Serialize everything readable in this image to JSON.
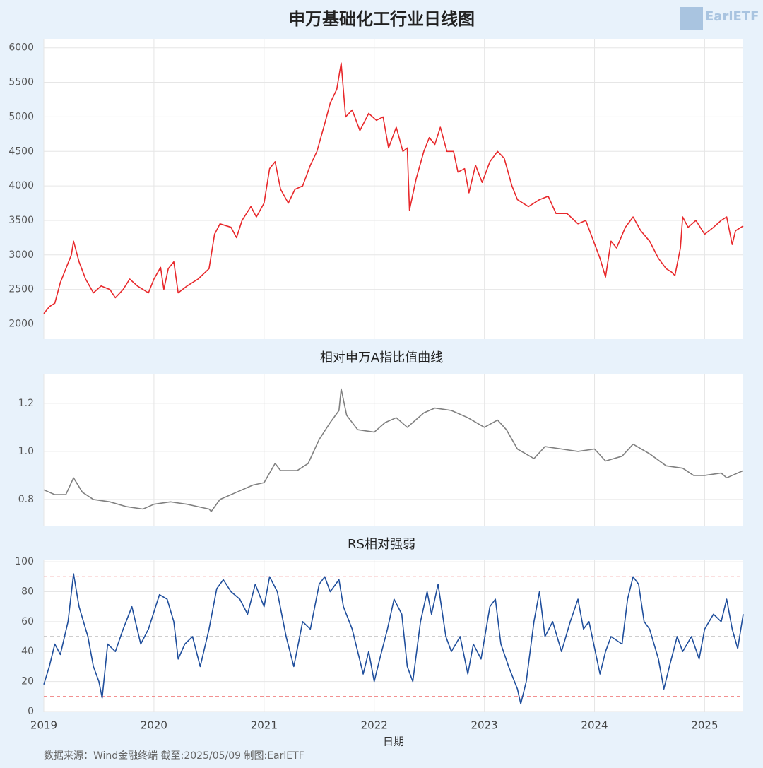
{
  "logo": "EarlETF",
  "source": "数据来源：Wind金融终端 截至:2025/05/09 制图:EarlETF",
  "chart_data": [
    {
      "type": "line",
      "title": "申万基础化工行业日线图",
      "color": "#e8282b",
      "grid": true,
      "show_xtick_labels": false,
      "xlim": [
        2019,
        2025.35
      ],
      "xticks": [
        2019,
        2020,
        2021,
        2022,
        2023,
        2024,
        2025
      ],
      "ylim": [
        1780,
        6130
      ],
      "yticks": [
        2000,
        2500,
        3000,
        3500,
        4000,
        4500,
        5000,
        5500,
        6000
      ],
      "x": [
        2019.0,
        2019.05,
        2019.1,
        2019.15,
        2019.2,
        2019.25,
        2019.27,
        2019.32,
        2019.38,
        2019.45,
        2019.52,
        2019.6,
        2019.65,
        2019.72,
        2019.78,
        2019.85,
        2019.95,
        2020.0,
        2020.06,
        2020.09,
        2020.13,
        2020.18,
        2020.22,
        2020.3,
        2020.4,
        2020.5,
        2020.55,
        2020.6,
        2020.7,
        2020.75,
        2020.8,
        2020.88,
        2020.93,
        2021.0,
        2021.05,
        2021.1,
        2021.15,
        2021.22,
        2021.28,
        2021.35,
        2021.42,
        2021.48,
        2021.55,
        2021.6,
        2021.66,
        2021.7,
        2021.74,
        2021.8,
        2021.87,
        2021.95,
        2022.02,
        2022.08,
        2022.13,
        2022.2,
        2022.26,
        2022.3,
        2022.32,
        2022.38,
        2022.45,
        2022.5,
        2022.55,
        2022.6,
        2022.66,
        2022.72,
        2022.76,
        2022.82,
        2022.86,
        2022.92,
        2022.98,
        2023.05,
        2023.12,
        2023.18,
        2023.25,
        2023.3,
        2023.4,
        2023.5,
        2023.58,
        2023.65,
        2023.75,
        2023.85,
        2023.92,
        2024.05,
        2024.1,
        2024.15,
        2024.2,
        2024.28,
        2024.35,
        2024.42,
        2024.5,
        2024.58,
        2024.65,
        2024.7,
        2024.73,
        2024.78,
        2024.8,
        2024.85,
        2024.92,
        2025.0,
        2025.08,
        2025.15,
        2025.2,
        2025.25,
        2025.28,
        2025.35
      ],
      "values": [
        2150,
        2250,
        2300,
        2600,
        2800,
        3000,
        3200,
        2900,
        2650,
        2450,
        2550,
        2500,
        2380,
        2500,
        2650,
        2550,
        2450,
        2650,
        2820,
        2500,
        2800,
        2900,
        2450,
        2550,
        2650,
        2800,
        3300,
        3450,
        3400,
        3250,
        3500,
        3700,
        3550,
        3750,
        4250,
        4350,
        3950,
        3750,
        3950,
        4000,
        4300,
        4500,
        4900,
        5200,
        5400,
        5780,
        5000,
        5100,
        4800,
        5050,
        4950,
        5000,
        4550,
        4850,
        4500,
        4550,
        3650,
        4100,
        4500,
        4700,
        4600,
        4850,
        4500,
        4500,
        4200,
        4250,
        3900,
        4300,
        4050,
        4350,
        4500,
        4400,
        4000,
        3800,
        3700,
        3800,
        3850,
        3600,
        3600,
        3450,
        3500,
        2950,
        2680,
        3200,
        3100,
        3400,
        3550,
        3350,
        3200,
        2950,
        2800,
        2750,
        2700,
        3100,
        3550,
        3400,
        3500,
        3300,
        3400,
        3500,
        3550,
        3150,
        3350,
        3420
      ]
    },
    {
      "type": "line",
      "title": "相对申万A指比值曲线",
      "color": "#808080",
      "grid": true,
      "show_xtick_labels": false,
      "xlim": [
        2019,
        2025.35
      ],
      "xticks": [
        2019,
        2020,
        2021,
        2022,
        2023,
        2024,
        2025
      ],
      "ylim": [
        0.688,
        1.32
      ],
      "yticks": [
        {
          "value": 0.8,
          "label": "0.8"
        },
        {
          "value": 1,
          "label": "1.0"
        },
        {
          "value": 1.2,
          "label": "1.2"
        }
      ],
      "x": [
        2019.0,
        2019.1,
        2019.2,
        2019.27,
        2019.35,
        2019.45,
        2019.6,
        2019.75,
        2019.9,
        2020.0,
        2020.15,
        2020.3,
        2020.4,
        2020.5,
        2020.52,
        2020.6,
        2020.75,
        2020.9,
        2021.0,
        2021.1,
        2021.15,
        2021.3,
        2021.4,
        2021.5,
        2021.6,
        2021.68,
        2021.7,
        2021.75,
        2021.85,
        2022.0,
        2022.1,
        2022.2,
        2022.3,
        2022.45,
        2022.55,
        2022.7,
        2022.85,
        2023.0,
        2023.12,
        2023.2,
        2023.3,
        2023.45,
        2023.55,
        2023.7,
        2023.85,
        2024.0,
        2024.1,
        2024.25,
        2024.35,
        2024.5,
        2024.65,
        2024.8,
        2024.9,
        2025.0,
        2025.15,
        2025.2,
        2025.35
      ],
      "values": [
        0.84,
        0.82,
        0.82,
        0.89,
        0.83,
        0.8,
        0.79,
        0.77,
        0.76,
        0.78,
        0.79,
        0.78,
        0.77,
        0.76,
        0.75,
        0.8,
        0.83,
        0.86,
        0.87,
        0.95,
        0.92,
        0.92,
        0.95,
        1.05,
        1.12,
        1.17,
        1.26,
        1.15,
        1.09,
        1.08,
        1.12,
        1.14,
        1.1,
        1.16,
        1.18,
        1.17,
        1.14,
        1.1,
        1.13,
        1.09,
        1.01,
        0.97,
        1.02,
        1.01,
        1.0,
        1.01,
        0.96,
        0.98,
        1.03,
        0.99,
        0.94,
        0.93,
        0.9,
        0.9,
        0.91,
        0.89,
        0.92
      ]
    },
    {
      "type": "line",
      "title": "RS相对强弱",
      "color": "#1f4e9c",
      "grid": true,
      "show_xtick_labels": true,
      "xlabel": "日期",
      "xlim": [
        2019,
        2025.35
      ],
      "xticks": [
        2019,
        2020,
        2021,
        2022,
        2023,
        2024,
        2025
      ],
      "ylim": [
        -0.5,
        101
      ],
      "yticks": [
        0,
        20,
        40,
        60,
        80,
        100
      ],
      "hlines": [
        {
          "value": 10,
          "color": "#f08080"
        },
        {
          "value": 50,
          "color": "#b0b0b0"
        },
        {
          "value": 90,
          "color": "#f08080"
        }
      ],
      "x": [
        2019.0,
        2019.05,
        2019.1,
        2019.15,
        2019.22,
        2019.27,
        2019.32,
        2019.4,
        2019.45,
        2019.5,
        2019.53,
        2019.58,
        2019.65,
        2019.72,
        2019.8,
        2019.88,
        2019.95,
        2020.05,
        2020.12,
        2020.18,
        2020.22,
        2020.28,
        2020.35,
        2020.42,
        2020.5,
        2020.57,
        2020.63,
        2020.7,
        2020.78,
        2020.85,
        2020.92,
        2021.0,
        2021.05,
        2021.12,
        2021.2,
        2021.27,
        2021.35,
        2021.42,
        2021.5,
        2021.55,
        2021.6,
        2021.68,
        2021.72,
        2021.8,
        2021.85,
        2021.9,
        2021.95,
        2022.0,
        2022.05,
        2022.12,
        2022.18,
        2022.25,
        2022.3,
        2022.35,
        2022.42,
        2022.48,
        2022.52,
        2022.58,
        2022.65,
        2022.7,
        2022.78,
        2022.85,
        2022.9,
        2022.97,
        2023.05,
        2023.1,
        2023.15,
        2023.22,
        2023.3,
        2023.33,
        2023.38,
        2023.45,
        2023.5,
        2023.55,
        2023.62,
        2023.7,
        2023.78,
        2023.85,
        2023.9,
        2023.95,
        2024.05,
        2024.1,
        2024.15,
        2024.25,
        2024.3,
        2024.35,
        2024.4,
        2024.45,
        2024.5,
        2024.58,
        2024.63,
        2024.68,
        2024.75,
        2024.8,
        2024.88,
        2024.95,
        2025.0,
        2025.08,
        2025.15,
        2025.2,
        2025.25,
        2025.3,
        2025.35
      ],
      "values": [
        18,
        30,
        45,
        38,
        60,
        92,
        70,
        50,
        30,
        20,
        9,
        45,
        40,
        55,
        70,
        45,
        55,
        78,
        75,
        60,
        35,
        45,
        50,
        30,
        55,
        82,
        88,
        80,
        75,
        65,
        85,
        70,
        90,
        80,
        50,
        30,
        60,
        55,
        85,
        90,
        80,
        88,
        70,
        55,
        40,
        25,
        40,
        20,
        35,
        55,
        75,
        65,
        30,
        20,
        60,
        80,
        65,
        85,
        50,
        40,
        50,
        25,
        45,
        35,
        70,
        75,
        45,
        30,
        15,
        5,
        20,
        60,
        80,
        50,
        60,
        40,
        60,
        75,
        55,
        60,
        25,
        40,
        50,
        45,
        75,
        90,
        85,
        60,
        55,
        35,
        15,
        30,
        50,
        40,
        50,
        35,
        55,
        65,
        60,
        75,
        55,
        42,
        65
      ]
    }
  ]
}
